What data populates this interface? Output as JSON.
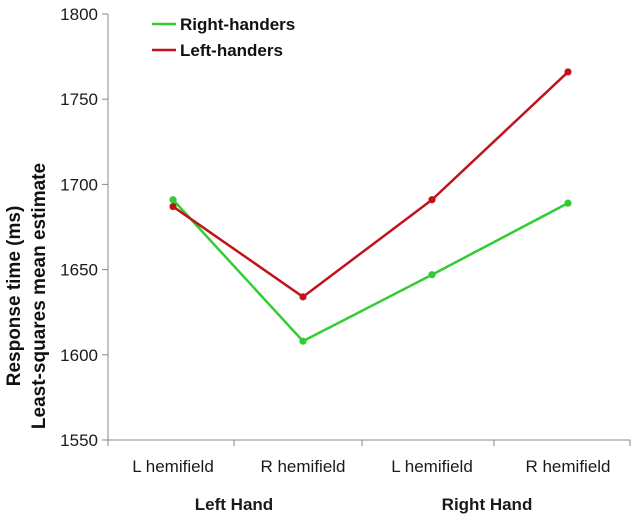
{
  "chart_data": {
    "type": "line",
    "x": [
      "L hemifield",
      "R hemifield",
      "L hemifield",
      "R hemifield"
    ],
    "groups": [
      {
        "label": "Left Hand"
      },
      {
        "label": "Right Hand"
      }
    ],
    "ylabel_lines": [
      "Response time (ms)",
      "Least-squares mean estimate"
    ],
    "ylim": [
      1550,
      1800
    ],
    "yticks": [
      "1550",
      "1600",
      "1650",
      "1700",
      "1750",
      "1800"
    ],
    "legend_position": "top-left",
    "grid": false,
    "series": [
      {
        "name": "Right-handers",
        "color": "#33cc33",
        "values": [
          1691,
          1608,
          1647,
          1689
        ]
      },
      {
        "name": "Left-handers",
        "color": "#c0141c",
        "values": [
          1687,
          1634,
          1691,
          1766
        ]
      }
    ]
  }
}
